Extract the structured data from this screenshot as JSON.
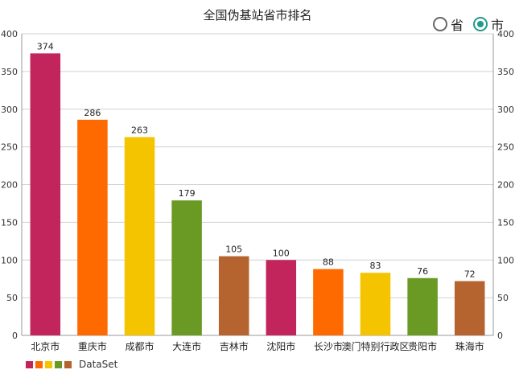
{
  "chart_data": {
    "type": "bar",
    "title": "全国伪基站省市排名",
    "categories": [
      "北京市",
      "重庆市",
      "成都市",
      "大连市",
      "吉林市",
      "沈阳市",
      "长沙市",
      "澳门特别行政区",
      "贵阳市",
      "珠海市"
    ],
    "values": [
      374,
      286,
      263,
      179,
      105,
      100,
      88,
      83,
      76,
      72
    ],
    "bar_colors": [
      "#c2255c",
      "#fe6900",
      "#f5c400",
      "#6a9a23",
      "#b5642f",
      "#c2255c",
      "#fe6900",
      "#f5c400",
      "#6a9a23",
      "#b5642f"
    ],
    "ylim": [
      0,
      400
    ],
    "yticks": [
      0,
      50,
      100,
      150,
      200,
      250,
      300,
      350,
      400
    ],
    "grid": true,
    "legend": {
      "label": "DataSet",
      "colors": [
        "#c2255c",
        "#fe6900",
        "#f5c400",
        "#6a9a23",
        "#b5642f"
      ],
      "position": "bottom-left"
    }
  },
  "toggle": {
    "options": [
      {
        "label": "省",
        "selected": false
      },
      {
        "label": "市",
        "selected": true
      }
    ],
    "accent": "#1f9b87"
  }
}
